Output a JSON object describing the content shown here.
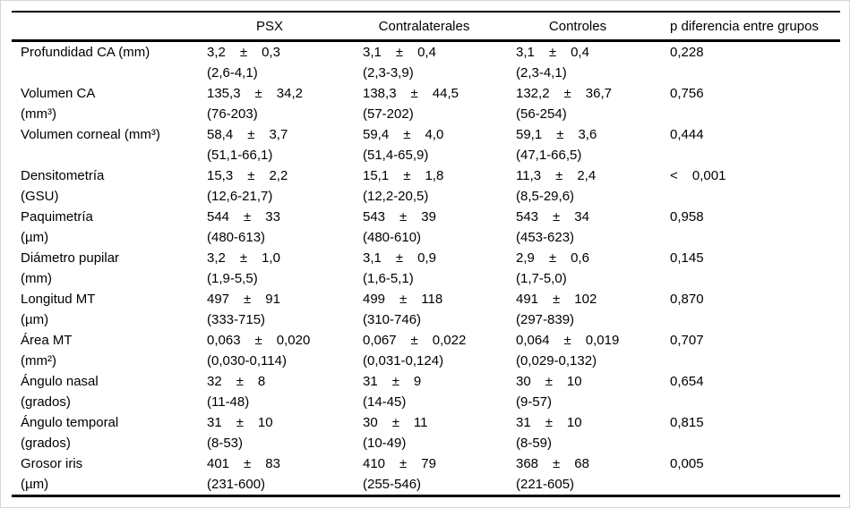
{
  "table": {
    "columns": [
      "",
      "PSX",
      "Contralaterales",
      "Controles",
      "p diferencia entre grupos"
    ],
    "pm": "±",
    "rows": [
      {
        "label1": "Profundidad CA (mm)",
        "label2": "",
        "cells": [
          {
            "mean": "3,2",
            "sd": "0,3",
            "range": "(2,6-4,1)"
          },
          {
            "mean": "3,1",
            "sd": "0,4",
            "range": "(2,3-3,9)"
          },
          {
            "mean": "3,1",
            "sd": "0,4",
            "range": "(2,3-4,1)"
          }
        ],
        "p": "0,228"
      },
      {
        "label1": "Volumen CA",
        "label2": "(mm³)",
        "cells": [
          {
            "mean": "135,3",
            "sd": "34,2",
            "range": "(76-203)"
          },
          {
            "mean": "138,3",
            "sd": "44,5",
            "range": "(57-202)"
          },
          {
            "mean": "132,2",
            "sd": "36,7",
            "range": "(56-254)"
          }
        ],
        "p": "0,756"
      },
      {
        "label1": "Volumen corneal (mm³)",
        "label2": "",
        "cells": [
          {
            "mean": "58,4",
            "sd": "3,7",
            "range": "(51,1-66,1)"
          },
          {
            "mean": "59,4",
            "sd": "4,0",
            "range": "(51,4-65,9)"
          },
          {
            "mean": "59,1",
            "sd": "3,6",
            "range": "(47,1-66,5)"
          }
        ],
        "p": "0,444"
      },
      {
        "label1": "Densitometría",
        "label2": "(GSU)",
        "cells": [
          {
            "mean": "15,3",
            "sd": "2,2",
            "range": "(12,6-21,7)"
          },
          {
            "mean": "15,1",
            "sd": "1,8",
            "range": "(12,2-20,5)"
          },
          {
            "mean": "11,3",
            "sd": "2,4",
            "range": "(8,5-29,6)"
          }
        ],
        "p": "< 0,001"
      },
      {
        "label1": "Paquimetría",
        "label2": "(µm)",
        "cells": [
          {
            "mean": "544",
            "sd": "33",
            "range": "(480-613)"
          },
          {
            "mean": "543",
            "sd": "39",
            "range": "(480-610)"
          },
          {
            "mean": "543",
            "sd": "34",
            "range": "(453-623)"
          }
        ],
        "p": "0,958"
      },
      {
        "label1": "Diámetro pupilar",
        "label2": "(mm)",
        "cells": [
          {
            "mean": "3,2",
            "sd": "1,0",
            "range": "(1,9-5,5)"
          },
          {
            "mean": "3,1",
            "sd": "0,9",
            "range": "(1,6-5,1)"
          },
          {
            "mean": "2,9",
            "sd": "0,6",
            "range": "(1,7-5,0)"
          }
        ],
        "p": "0,145"
      },
      {
        "label1": "Longitud MT",
        "label2": "(µm)",
        "cells": [
          {
            "mean": "497",
            "sd": "91",
            "range": "(333-715)"
          },
          {
            "mean": "499",
            "sd": "118",
            "range": "(310-746)"
          },
          {
            "mean": "491",
            "sd": "102",
            "range": "(297-839)"
          }
        ],
        "p": "0,870"
      },
      {
        "label1": "Área MT",
        "label2": "(mm²)",
        "cells": [
          {
            "mean": "0,063",
            "sd": "0,020",
            "range": "(0,030-0,114)"
          },
          {
            "mean": "0,067",
            "sd": "0,022",
            "range": "(0,031-0,124)"
          },
          {
            "mean": "0,064",
            "sd": "0,019",
            "range": "(0,029-0,132)"
          }
        ],
        "p": "0,707"
      },
      {
        "label1": "Ángulo nasal",
        "label2": "(grados)",
        "cells": [
          {
            "mean": "32",
            "sd": "8",
            "range": "(11-48)"
          },
          {
            "mean": "31",
            "sd": "9",
            "range": "(14-45)"
          },
          {
            "mean": "30",
            "sd": "10",
            "range": "(9-57)"
          }
        ],
        "p": "0,654"
      },
      {
        "label1": "Ángulo temporal",
        "label2": "(grados)",
        "cells": [
          {
            "mean": "31",
            "sd": "10",
            "range": "(8-53)"
          },
          {
            "mean": "30",
            "sd": "11",
            "range": "(10-49)"
          },
          {
            "mean": "31",
            "sd": "10",
            "range": "(8-59)"
          }
        ],
        "p": "0,815"
      },
      {
        "label1": "Grosor iris",
        "label2": "(µm)",
        "cells": [
          {
            "mean": "401",
            "sd": "83",
            "range": "(231-600)"
          },
          {
            "mean": "410",
            "sd": "79",
            "range": "(255-546)"
          },
          {
            "mean": "368",
            "sd": "68",
            "range": "(221-605)"
          }
        ],
        "p": "0,005"
      }
    ]
  }
}
